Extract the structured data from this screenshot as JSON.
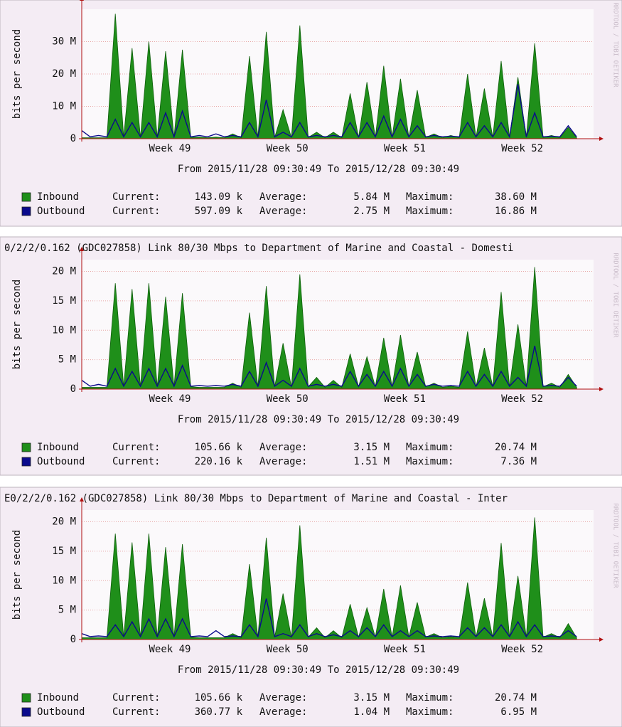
{
  "chart_data": [
    {
      "type": "area",
      "y_label": "bits per second",
      "subtitle": "From 2015/11/28 09:30:49 To 2015/12/28 09:30:49",
      "watermark": "RRDTOOL / TOBI OETIKER",
      "categories": [
        null,
        null,
        null,
        null,
        null,
        null,
        null,
        null,
        null,
        null,
        "Week 49",
        null,
        null,
        null,
        null,
        null,
        null,
        null,
        null,
        null,
        null,
        null,
        null,
        null,
        "Week 50",
        null,
        null,
        null,
        null,
        null,
        null,
        null,
        null,
        null,
        null,
        null,
        null,
        null,
        "Week 51",
        null,
        null,
        null,
        null,
        null,
        null,
        null,
        null,
        null,
        null,
        null,
        null,
        null,
        "Week 52",
        null,
        null,
        null,
        null,
        null,
        null,
        null
      ],
      "ylim": [
        0,
        40
      ],
      "yticks": [
        0,
        {
          "value": 10,
          "label": "10 M"
        },
        {
          "value": 20,
          "label": "20 M"
        },
        {
          "value": 30,
          "label": "30 M"
        }
      ],
      "grid": true,
      "stat_labels": [
        "Current:",
        "Average:",
        "Maximum:"
      ],
      "series": [
        {
          "name": "Inbound",
          "color": "#1f8f1a",
          "stats": [
            "143.09 k",
            "5.84 M",
            "38.60 M"
          ],
          "values": [
            0.3,
            0.3,
            0.3,
            0.3,
            38.6,
            0.4,
            28,
            0.4,
            30,
            0.4,
            27,
            0.4,
            27.5,
            0.4,
            0.5,
            0.3,
            0.5,
            0.3,
            1.5,
            0.3,
            25.5,
            0.4,
            33,
            0.4,
            9,
            0.3,
            35,
            0.4,
            2,
            0.3,
            2,
            0.3,
            14,
            0.4,
            17.5,
            0.4,
            22.5,
            0.4,
            18.5,
            0.4,
            15,
            0.4,
            1.5,
            0.3,
            1,
            0.3,
            20,
            0.4,
            15.5,
            0.4,
            24,
            0.4,
            19,
            0.4,
            29.5,
            0.4,
            1,
            0.3,
            3.5,
            0.3
          ]
        },
        {
          "name": "Outbound",
          "color": "#0a0a8c",
          "stats": [
            "597.09 k",
            "2.75 M",
            "16.86 M"
          ],
          "values": [
            2.5,
            0.6,
            1,
            0.6,
            6,
            0.6,
            5,
            0.6,
            5,
            0.6,
            8,
            0.6,
            8.5,
            0.6,
            1,
            0.6,
            1.5,
            0.6,
            1,
            0.6,
            5,
            0.6,
            12,
            0.6,
            2,
            0.6,
            5,
            0.6,
            1,
            0.6,
            1,
            0.6,
            5,
            0.6,
            5,
            0.6,
            7,
            0.6,
            6,
            0.6,
            4,
            0.6,
            1,
            0.6,
            0.8,
            0.6,
            5,
            0.6,
            4,
            0.6,
            5,
            0.6,
            16.86,
            0.6,
            8,
            0.6,
            0.8,
            0.6,
            4,
            0.6
          ]
        }
      ]
    },
    {
      "type": "area",
      "title": "0/2/2/0.162 (GDC027858) Link 80/30 Mbps to Department of Marine and Coastal - Domesti",
      "y_label": "bits per second",
      "subtitle": "From 2015/11/28 09:30:49 To 2015/12/28 09:30:49",
      "watermark": "RRDTOOL / TOBI OETIKER",
      "categories": [
        null,
        null,
        null,
        null,
        null,
        null,
        null,
        null,
        null,
        null,
        "Week 49",
        null,
        null,
        null,
        null,
        null,
        null,
        null,
        null,
        null,
        null,
        null,
        null,
        null,
        "Week 50",
        null,
        null,
        null,
        null,
        null,
        null,
        null,
        null,
        null,
        null,
        null,
        null,
        null,
        "Week 51",
        null,
        null,
        null,
        null,
        null,
        null,
        null,
        null,
        null,
        null,
        null,
        null,
        null,
        "Week 52",
        null,
        null,
        null,
        null,
        null,
        null,
        null
      ],
      "ylim": [
        0,
        22
      ],
      "yticks": [
        0,
        {
          "value": 5,
          "label": "5 M"
        },
        {
          "value": 10,
          "label": "10 M"
        },
        {
          "value": 15,
          "label": "15 M"
        },
        {
          "value": 20,
          "label": "20 M"
        }
      ],
      "grid": true,
      "stat_labels": [
        "Current:",
        "Average:",
        "Maximum:"
      ],
      "series": [
        {
          "name": "Inbound",
          "color": "#1f8f1a",
          "stats": [
            "105.66 k",
            "3.15 M",
            "20.74 M"
          ],
          "values": [
            0.3,
            0.3,
            0.3,
            0.3,
            18,
            0.4,
            17,
            0.4,
            18,
            0.4,
            15.7,
            0.4,
            16.3,
            0.4,
            0.3,
            0.3,
            0.3,
            0.3,
            1,
            0.3,
            13,
            0.4,
            17.5,
            0.4,
            7.8,
            0.3,
            19.5,
            0.4,
            2,
            0.3,
            1.5,
            0.3,
            6,
            0.4,
            5.5,
            0.4,
            8.7,
            0.4,
            9.2,
            0.4,
            6.3,
            0.4,
            1,
            0.3,
            0.5,
            0.3,
            9.8,
            0.4,
            7,
            0.4,
            16.5,
            0.4,
            11,
            0.4,
            20.74,
            0.4,
            1,
            0.3,
            2.5,
            0.3
          ]
        },
        {
          "name": "Outbound",
          "color": "#0a0a8c",
          "stats": [
            "220.16 k",
            "1.51 M",
            "7.36 M"
          ],
          "values": [
            1.5,
            0.5,
            0.8,
            0.5,
            3.5,
            0.5,
            3,
            0.5,
            3.5,
            0.5,
            3.5,
            0.5,
            4,
            0.5,
            0.6,
            0.5,
            0.6,
            0.5,
            0.8,
            0.5,
            3,
            0.5,
            4.5,
            0.5,
            1.5,
            0.5,
            3.5,
            0.5,
            0.8,
            0.5,
            0.8,
            0.5,
            3,
            0.5,
            2.5,
            0.5,
            3,
            0.5,
            3.5,
            0.5,
            2.5,
            0.5,
            0.8,
            0.5,
            0.6,
            0.5,
            3,
            0.5,
            2.5,
            0.5,
            3,
            0.5,
            2,
            0.5,
            7.36,
            0.5,
            0.6,
            0.5,
            2,
            0.5
          ]
        }
      ]
    },
    {
      "type": "area",
      "title": "E0/2/2/0.162 (GDC027858) Link 80/30 Mbps to Department of Marine and Coastal - Inter",
      "y_label": "bits per second",
      "subtitle": "From 2015/11/28 09:30:49 To 2015/12/28 09:30:49",
      "watermark": "RRDTOOL / TOBI OETIKER",
      "categories": [
        null,
        null,
        null,
        null,
        null,
        null,
        null,
        null,
        null,
        null,
        "Week 49",
        null,
        null,
        null,
        null,
        null,
        null,
        null,
        null,
        null,
        null,
        null,
        null,
        null,
        "Week 50",
        null,
        null,
        null,
        null,
        null,
        null,
        null,
        null,
        null,
        null,
        null,
        null,
        null,
        "Week 51",
        null,
        null,
        null,
        null,
        null,
        null,
        null,
        null,
        null,
        null,
        null,
        null,
        null,
        "Week 52",
        null,
        null,
        null,
        null,
        null,
        null,
        null
      ],
      "ylim": [
        0,
        22
      ],
      "yticks": [
        0,
        {
          "value": 5,
          "label": "5 M"
        },
        {
          "value": 10,
          "label": "10 M"
        },
        {
          "value": 15,
          "label": "15 M"
        },
        {
          "value": 20,
          "label": "20 M"
        }
      ],
      "grid": true,
      "stat_labels": [
        "Current:",
        "Average:",
        "Maximum:"
      ],
      "series": [
        {
          "name": "Inbound",
          "color": "#1f8f1a",
          "stats": [
            "105.66 k",
            "3.15 M",
            "20.74 M"
          ],
          "values": [
            0.3,
            0.3,
            0.3,
            0.3,
            18,
            0.4,
            16.5,
            0.4,
            18,
            0.4,
            15.7,
            0.4,
            16.2,
            0.4,
            0.3,
            0.3,
            0.3,
            0.3,
            1,
            0.3,
            12.8,
            0.4,
            17.3,
            0.4,
            7.8,
            0.3,
            19.4,
            0.4,
            2,
            0.3,
            1.5,
            0.3,
            6,
            0.4,
            5.4,
            0.4,
            8.6,
            0.4,
            9.2,
            0.4,
            6.3,
            0.4,
            1,
            0.3,
            0.5,
            0.3,
            9.7,
            0.4,
            7,
            0.4,
            16.4,
            0.4,
            10.8,
            0.4,
            20.74,
            0.4,
            1,
            0.3,
            2.7,
            0.3
          ]
        },
        {
          "name": "Outbound",
          "color": "#0a0a8c",
          "stats": [
            "360.77 k",
            "1.04 M",
            "6.95 M"
          ],
          "values": [
            1,
            0.5,
            0.6,
            0.5,
            2.5,
            0.5,
            3,
            0.5,
            3.5,
            0.5,
            3.5,
            0.5,
            3.5,
            0.5,
            0.6,
            0.5,
            1.5,
            0.5,
            0.6,
            0.5,
            2.5,
            0.5,
            6.95,
            0.5,
            1,
            0.5,
            2.5,
            0.5,
            1,
            0.5,
            0.8,
            0.5,
            1.5,
            0.5,
            2,
            0.5,
            2.5,
            0.5,
            1.5,
            0.5,
            1.5,
            0.5,
            0.6,
            0.5,
            0.6,
            0.5,
            2,
            0.5,
            2,
            0.5,
            2.5,
            0.5,
            3,
            0.5,
            2.5,
            0.5,
            0.6,
            0.5,
            1.5,
            0.5
          ]
        }
      ]
    }
  ]
}
